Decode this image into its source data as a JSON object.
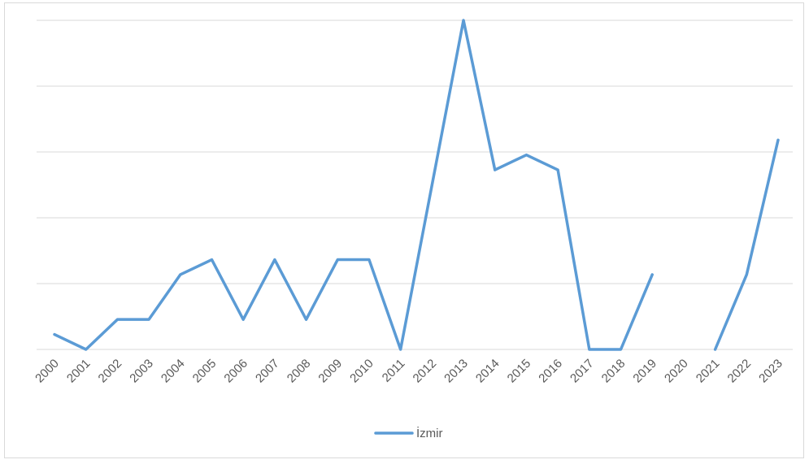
{
  "chart_data": {
    "type": "line",
    "title": "",
    "xlabel": "",
    "ylabel": "",
    "ylim": [
      0,
      11
    ],
    "y_tick_labels_shown": false,
    "grid": "horizontal",
    "legend_position": "bottom",
    "colors": {
      "series": "#5b9bd5",
      "grid": "#d9d9d9",
      "text": "#595959"
    },
    "categories": [
      "2000",
      "2001",
      "2002",
      "2003",
      "2004",
      "2005",
      "2006",
      "2007",
      "2008",
      "2009",
      "2010",
      "2011",
      "2012",
      "2013",
      "2014",
      "2015",
      "2016",
      "2017",
      "2018",
      "2019",
      "2020",
      "2021",
      "2022",
      "2023"
    ],
    "series": [
      {
        "name": "İzmir",
        "values": [
          0.5,
          0,
          1,
          1,
          2.5,
          3,
          1,
          3,
          1,
          3,
          3,
          0,
          5.5,
          11,
          6,
          6.5,
          6,
          0,
          0,
          2.5,
          null,
          0,
          2.5,
          7
        ]
      }
    ]
  }
}
